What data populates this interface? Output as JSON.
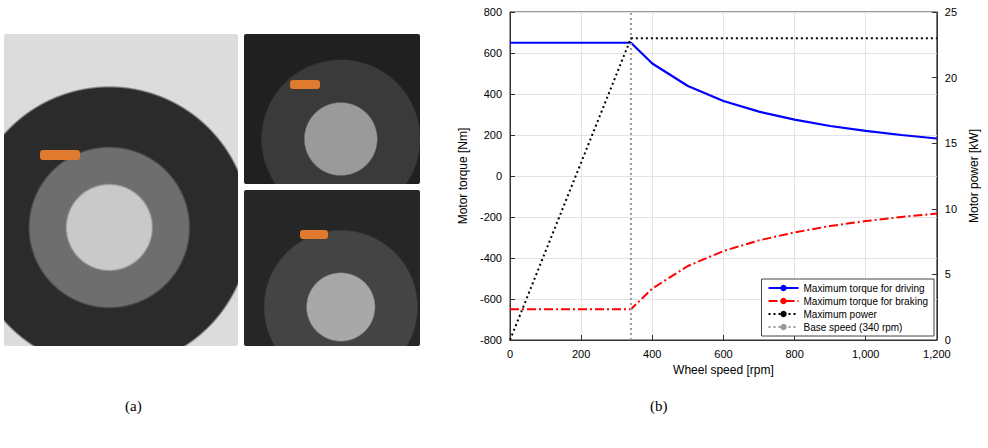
{
  "chart_data": {
    "type": "line",
    "x_label": "Wheel speed [rpm]",
    "y_label": "Motor torque [Nm]",
    "y2_label": "Motor power [kW]",
    "xlim": [
      0,
      1200
    ],
    "xticks": [
      0,
      200,
      400,
      600,
      800,
      1000,
      1200
    ],
    "ylim": [
      -800,
      800
    ],
    "yticks": [
      -800,
      -600,
      -400,
      -200,
      0,
      200,
      400,
      600,
      800
    ],
    "y2lim": [
      0,
      25
    ],
    "y2ticks": [
      0,
      5,
      10,
      15,
      20,
      25
    ],
    "grid": true,
    "legend": "lower right",
    "series": [
      {
        "name": "Maximum torque for driving",
        "color": "#0000ff",
        "line_style": "solid",
        "x": [
          0,
          340,
          400,
          500,
          600,
          700,
          800,
          900,
          1000,
          1100,
          1200
        ],
        "values": [
          650,
          650,
          549,
          439,
          366,
          314,
          275,
          244,
          220,
          200,
          183
        ]
      },
      {
        "name": "Maximum torque for braking",
        "color": "#ff0000",
        "line_style": "dashdot",
        "x": [
          0,
          340,
          400,
          500,
          600,
          700,
          800,
          900,
          1000,
          1100,
          1200
        ],
        "values": [
          -650,
          -650,
          -549,
          -439,
          -366,
          -314,
          -275,
          -244,
          -220,
          -200,
          -183
        ]
      },
      {
        "name": "Maximum power",
        "color": "#000000",
        "line_style": "dotted",
        "axis": "y2",
        "x": [
          0,
          340,
          1200
        ],
        "values": [
          0,
          23,
          23
        ]
      },
      {
        "name": "Base speed (340 rpm)",
        "color": "#999999",
        "line_style": "dotted",
        "x": [
          340,
          340
        ],
        "values": [
          -800,
          800
        ]
      }
    ]
  },
  "panel_labels": [
    "(a)",
    "(b)"
  ]
}
